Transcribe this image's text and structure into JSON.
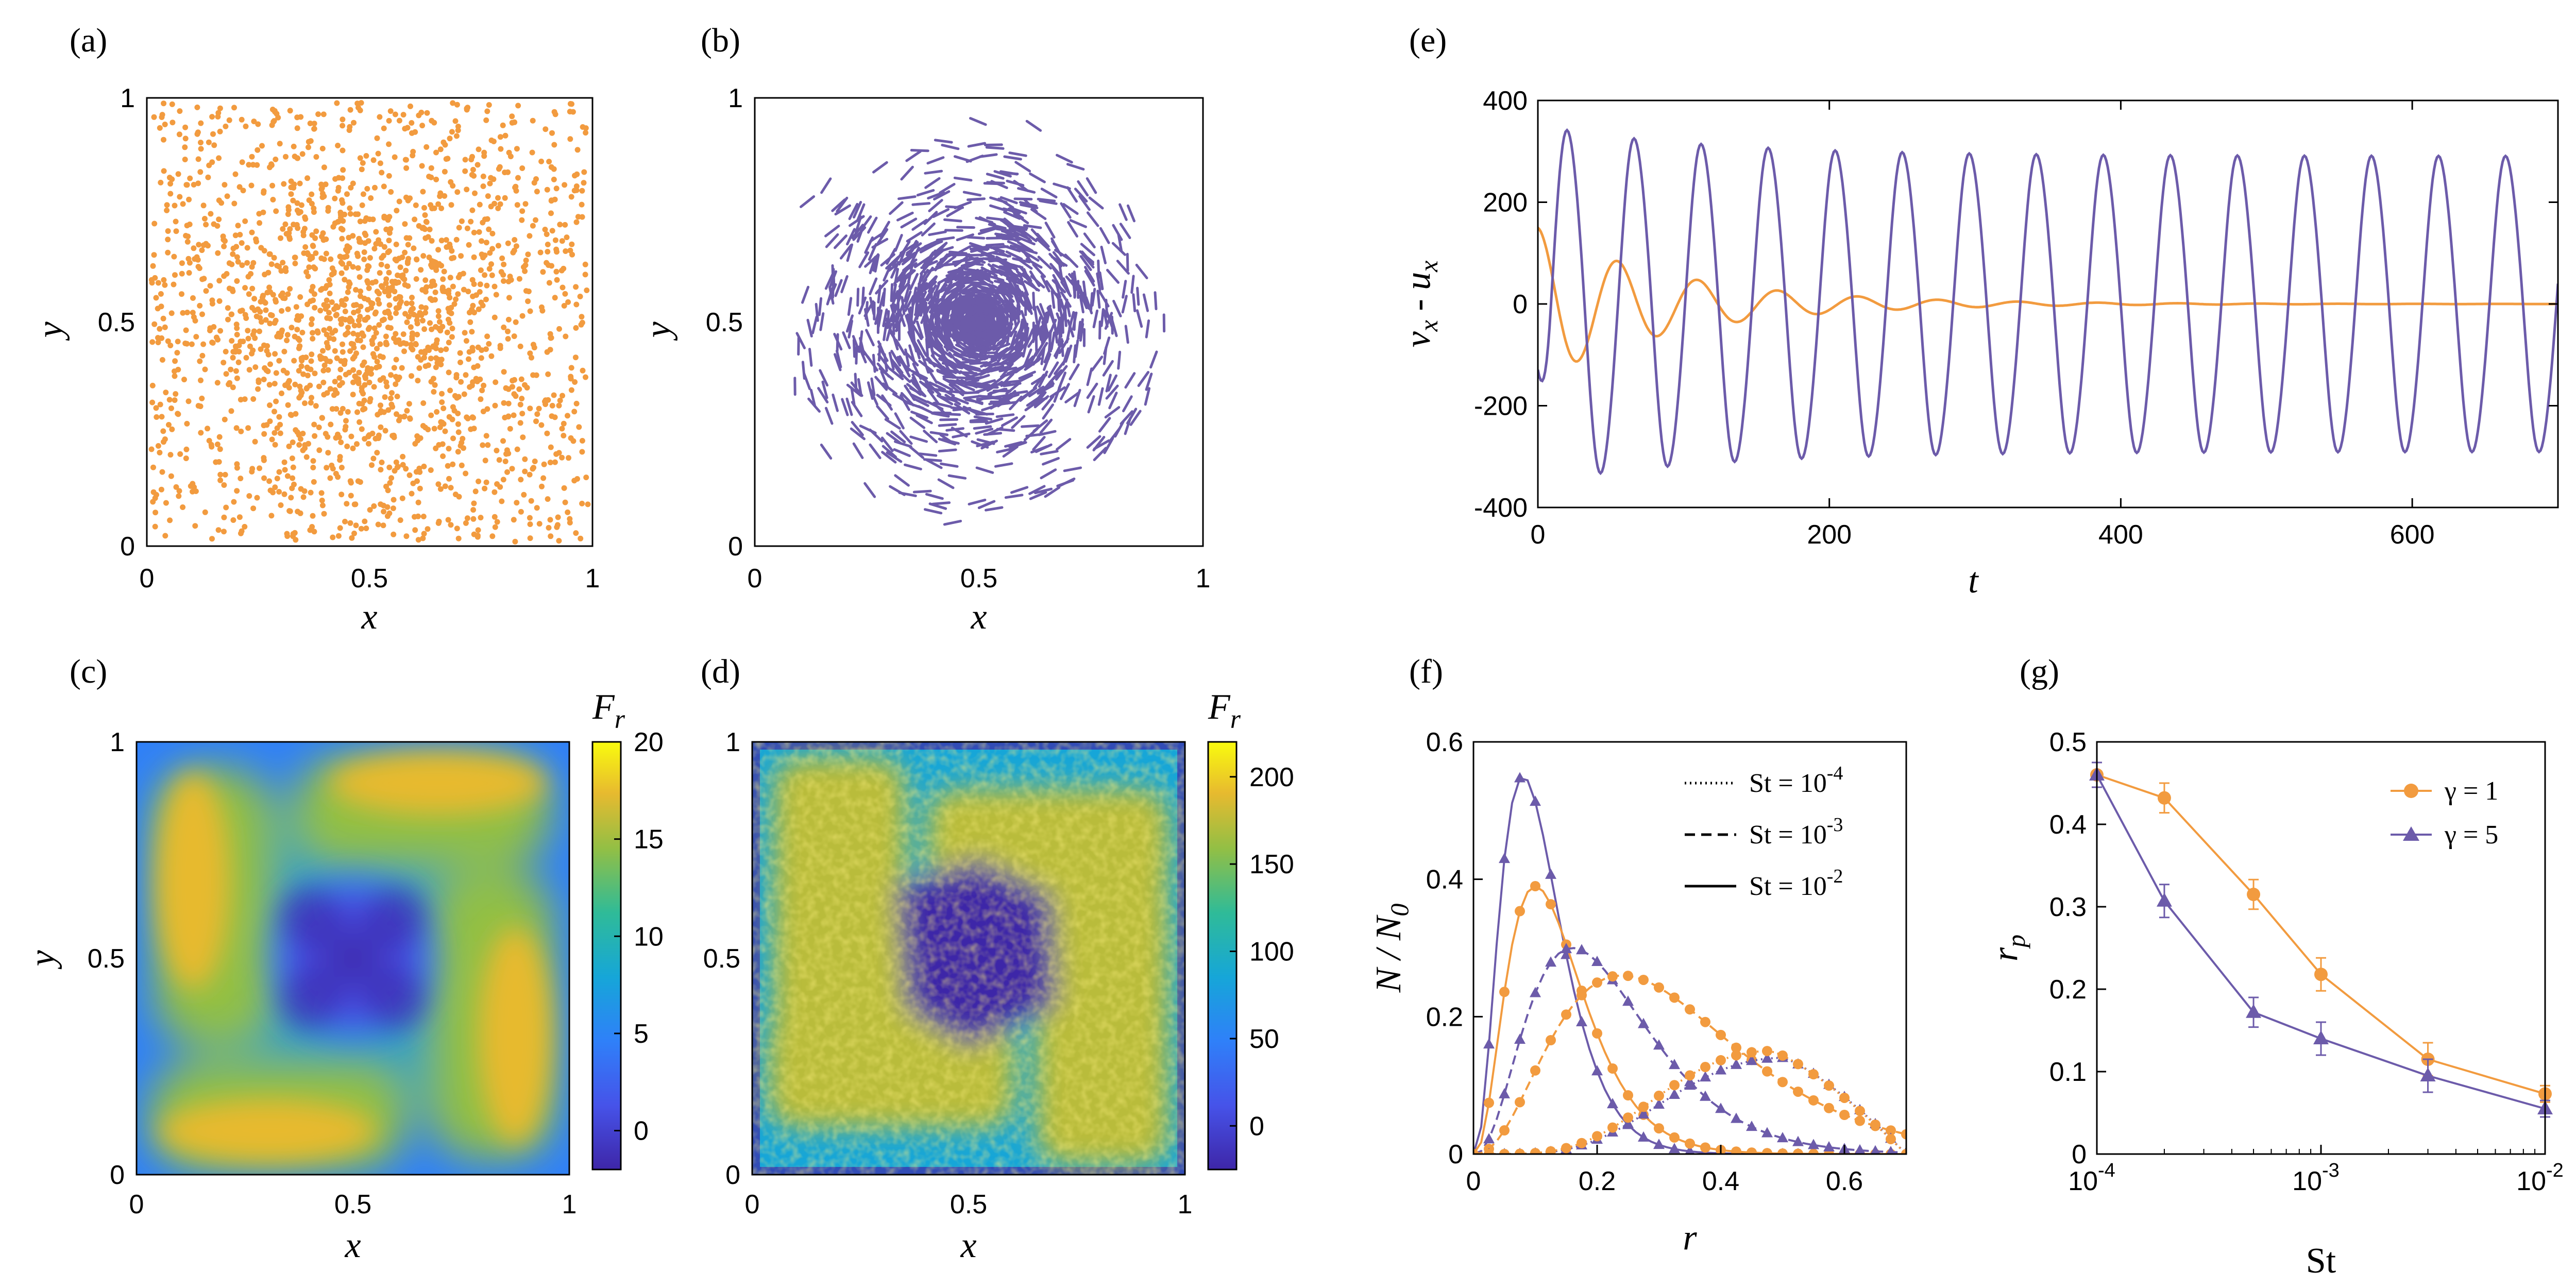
{
  "colors": {
    "orange": "#F29B3F",
    "purple": "#6C5BAA",
    "axis": "#000000"
  },
  "panel_labels": {
    "a": "(a)",
    "b": "(b)",
    "c": "(c)",
    "d": "(d)",
    "e": "(e)",
    "f": "(f)",
    "g": "(g)"
  },
  "chart_data": [
    {
      "id": "a",
      "type": "scatter",
      "description_text": "",
      "xlabel": "x",
      "ylabel": "y",
      "xlim": [
        0,
        1
      ],
      "ylim": [
        0,
        1
      ],
      "xticks": [
        "0",
        "0.5",
        "1"
      ],
      "yticks": [
        "0",
        "0.5",
        "1"
      ],
      "n_points": 2000,
      "distribution": "uniform-with-central-concentration"
    },
    {
      "id": "b",
      "type": "scatter",
      "xlabel": "x",
      "ylabel": "y",
      "xlim": [
        0,
        1
      ],
      "ylim": [
        0,
        1
      ],
      "xticks": [
        "0",
        "0.5",
        "1"
      ],
      "yticks": [
        "0",
        "0.5",
        "1"
      ],
      "marker": "oriented-dash",
      "vortex_center": [
        0.5,
        0.5
      ]
    },
    {
      "id": "c",
      "type": "heatmap",
      "xlabel": "x",
      "ylabel": "y",
      "colorbar_label": "F",
      "colorbar_label_sub": "r",
      "zlim": [
        -2,
        20
      ],
      "xticks": [
        "0",
        "0.5",
        "1"
      ],
      "yticks": [
        "0",
        "0.5",
        "1"
      ],
      "cbar_ticks": [
        {
          "label": "20",
          "v": 20
        },
        {
          "label": "15",
          "v": 15
        },
        {
          "label": "10",
          "v": 10
        },
        {
          "label": "5",
          "v": 5
        },
        {
          "label": "0",
          "v": 0
        }
      ]
    },
    {
      "id": "d",
      "type": "heatmap",
      "xlabel": "x",
      "colorbar_label": "F",
      "colorbar_label_sub": "r",
      "zlim": [
        -25,
        220
      ],
      "xticks": [
        "0",
        "0.5",
        "1"
      ],
      "yticks": [
        "0",
        "0.5",
        "1"
      ],
      "cbar_ticks": [
        {
          "label": "200",
          "v": 200
        },
        {
          "label": "150",
          "v": 150
        },
        {
          "label": "100",
          "v": 100
        },
        {
          "label": "50",
          "v": 50
        },
        {
          "label": "0",
          "v": 0
        }
      ]
    },
    {
      "id": "e",
      "type": "line",
      "xlabel": "t",
      "ylabel": "v_x - u_x",
      "ylabel_v": "v",
      "ylabel_u": "u",
      "ylabel_sub": "x",
      "ylabel_minus": "-",
      "xlim": [
        0,
        700
      ],
      "ylim": [
        -400,
        400
      ],
      "xticks": [
        {
          "label": "0",
          "v": 0
        },
        {
          "label": "200",
          "v": 200
        },
        {
          "label": "400",
          "v": 400
        },
        {
          "label": "600",
          "v": 600
        }
      ],
      "yticks": [
        {
          "label": "400",
          "v": 400
        },
        {
          "label": "200",
          "v": 200
        },
        {
          "label": "0",
          "v": 0
        },
        {
          "label": "-200",
          "v": -200
        },
        {
          "label": "-400",
          "v": -400
        }
      ],
      "series": [
        {
          "name": "purple oscillation",
          "color": "purple",
          "period": 46,
          "amplitude_late": 290,
          "peak_early": 350,
          "trough_early": -350
        },
        {
          "name": "orange damped",
          "color": "orange",
          "period": 55,
          "amplitude_start": 150,
          "decay_to_zero_by": 450
        }
      ]
    },
    {
      "id": "f",
      "type": "line",
      "xlabel": "r",
      "ylabel": "N / N",
      "ylabel_sub": "0",
      "xlim": [
        0,
        0.7
      ],
      "ylim": [
        0,
        0.6
      ],
      "xticks": [
        {
          "label": "0",
          "v": 0
        },
        {
          "label": "0.2",
          "v": 0.2
        },
        {
          "label": "0.4",
          "v": 0.4
        },
        {
          "label": "0.6",
          "v": 0.6
        }
      ],
      "yticks": [
        {
          "label": "0.6",
          "v": 0.6
        },
        {
          "label": "0.4",
          "v": 0.4
        },
        {
          "label": "0.2",
          "v": 0.2
        },
        {
          "label": "0",
          "v": 0
        }
      ],
      "legend": [
        {
          "label": "St = 10",
          "exp": "-4",
          "style": "dotted"
        },
        {
          "label": "St = 10",
          "exp": "-3",
          "style": "dashed"
        },
        {
          "label": "St = 10",
          "exp": "-2",
          "style": "solid"
        }
      ],
      "series": [
        {
          "name": "St=1e-2, gamma=5",
          "color": "purple",
          "style": "solid",
          "peak_r": 0.08,
          "peak": 0.55
        },
        {
          "name": "St=1e-2, gamma=1",
          "color": "orange",
          "style": "solid",
          "peak_r": 0.1,
          "peak": 0.39
        },
        {
          "name": "St=1e-3, gamma=5",
          "color": "purple",
          "style": "dashed",
          "peak_r": 0.16,
          "peak": 0.3
        },
        {
          "name": "St=1e-3, gamma=1",
          "color": "orange",
          "style": "dashed",
          "peak_r": 0.24,
          "peak": 0.26
        },
        {
          "name": "St=1e-4, gamma=5",
          "color": "purple",
          "style": "dotted",
          "peak_r": 0.5,
          "peak": 0.14
        },
        {
          "name": "St=1e-4, gamma=1",
          "color": "orange",
          "style": "dotted",
          "peak_r": 0.48,
          "peak": 0.15
        }
      ]
    },
    {
      "id": "g",
      "type": "line",
      "xlabel": "St",
      "ylabel": "r",
      "ylabel_sub": "p",
      "xscale": "log",
      "xlim": [
        0.0001,
        0.01
      ],
      "ylim": [
        0,
        0.5
      ],
      "xticks": [
        {
          "label": "10",
          "exp": "-4",
          "v": 0.0001
        },
        {
          "label": "10",
          "exp": "-3",
          "v": 0.001
        },
        {
          "label": "10",
          "exp": "-2",
          "v": 0.01
        }
      ],
      "yticks": [
        {
          "label": "0.5",
          "v": 0.5
        },
        {
          "label": "0.4",
          "v": 0.4
        },
        {
          "label": "0.3",
          "v": 0.3
        },
        {
          "label": "0.2",
          "v": 0.2
        },
        {
          "label": "0.1",
          "v": 0.1
        },
        {
          "label": "0",
          "v": 0
        }
      ],
      "legend": [
        {
          "label": "γ = 1",
          "color": "orange",
          "marker": "circle"
        },
        {
          "label": "γ = 5",
          "color": "purple",
          "marker": "triangle"
        }
      ],
      "series": [
        {
          "name": "γ = 1",
          "color": "orange",
          "marker": "circle",
          "x": [
            0.0001,
            0.0002,
            0.0005,
            0.001,
            0.003,
            0.01
          ],
          "y": [
            0.46,
            0.432,
            0.315,
            0.218,
            0.115,
            0.073
          ],
          "err": [
            0.015,
            0.018,
            0.018,
            0.02,
            0.02,
            0.01
          ]
        },
        {
          "name": "γ = 5",
          "color": "purple",
          "marker": "triangle",
          "x": [
            0.0001,
            0.0002,
            0.0005,
            0.001,
            0.003,
            0.01
          ],
          "y": [
            0.46,
            0.307,
            0.172,
            0.14,
            0.095,
            0.055
          ],
          "err": [
            0.015,
            0.02,
            0.018,
            0.02,
            0.02,
            0.01
          ]
        }
      ]
    }
  ]
}
